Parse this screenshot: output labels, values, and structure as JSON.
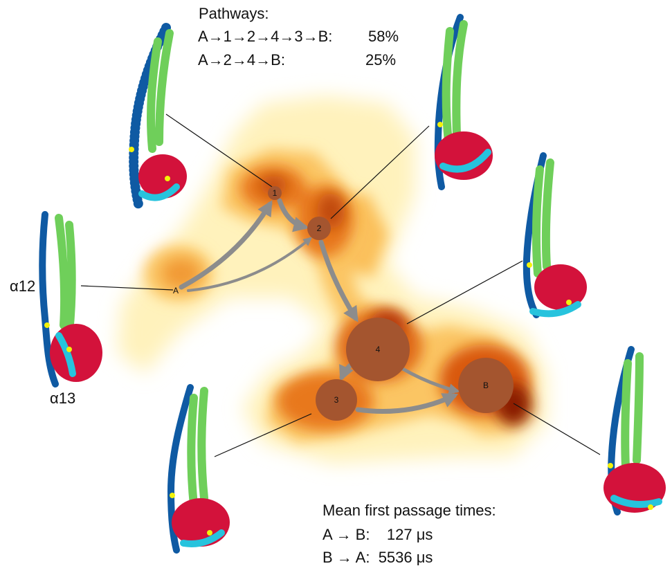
{
  "pathways": {
    "title": "Pathways:",
    "items": [
      {
        "route": "A→1→2→4→3→B:",
        "percent": "58%"
      },
      {
        "route": "A→2→4→B:",
        "percent": "25%"
      }
    ]
  },
  "mfpt": {
    "title": "Mean first passage times:",
    "items": [
      "A → B:    127 μs",
      "B → A:  5536 μs"
    ]
  },
  "helix_labels": {
    "alpha12": "α12",
    "alpha13": "α13"
  },
  "states": {
    "A": "A",
    "s1": "1",
    "s2": "2",
    "s4": "4",
    "s3": "3",
    "B": "B"
  },
  "colors": {
    "node": "#a4552f",
    "arrow": "#8c8c8c",
    "helix_blue": "#0f5aa3",
    "helix_green": "#6fcf5a",
    "bundle_red": "#d3123b",
    "loop_cyan": "#27c3dd",
    "marker_yellow": "#f2f20a",
    "density_light": "#fff1b8",
    "density_mid": "#f5a23a",
    "density_dark": "#8a1a06"
  }
}
